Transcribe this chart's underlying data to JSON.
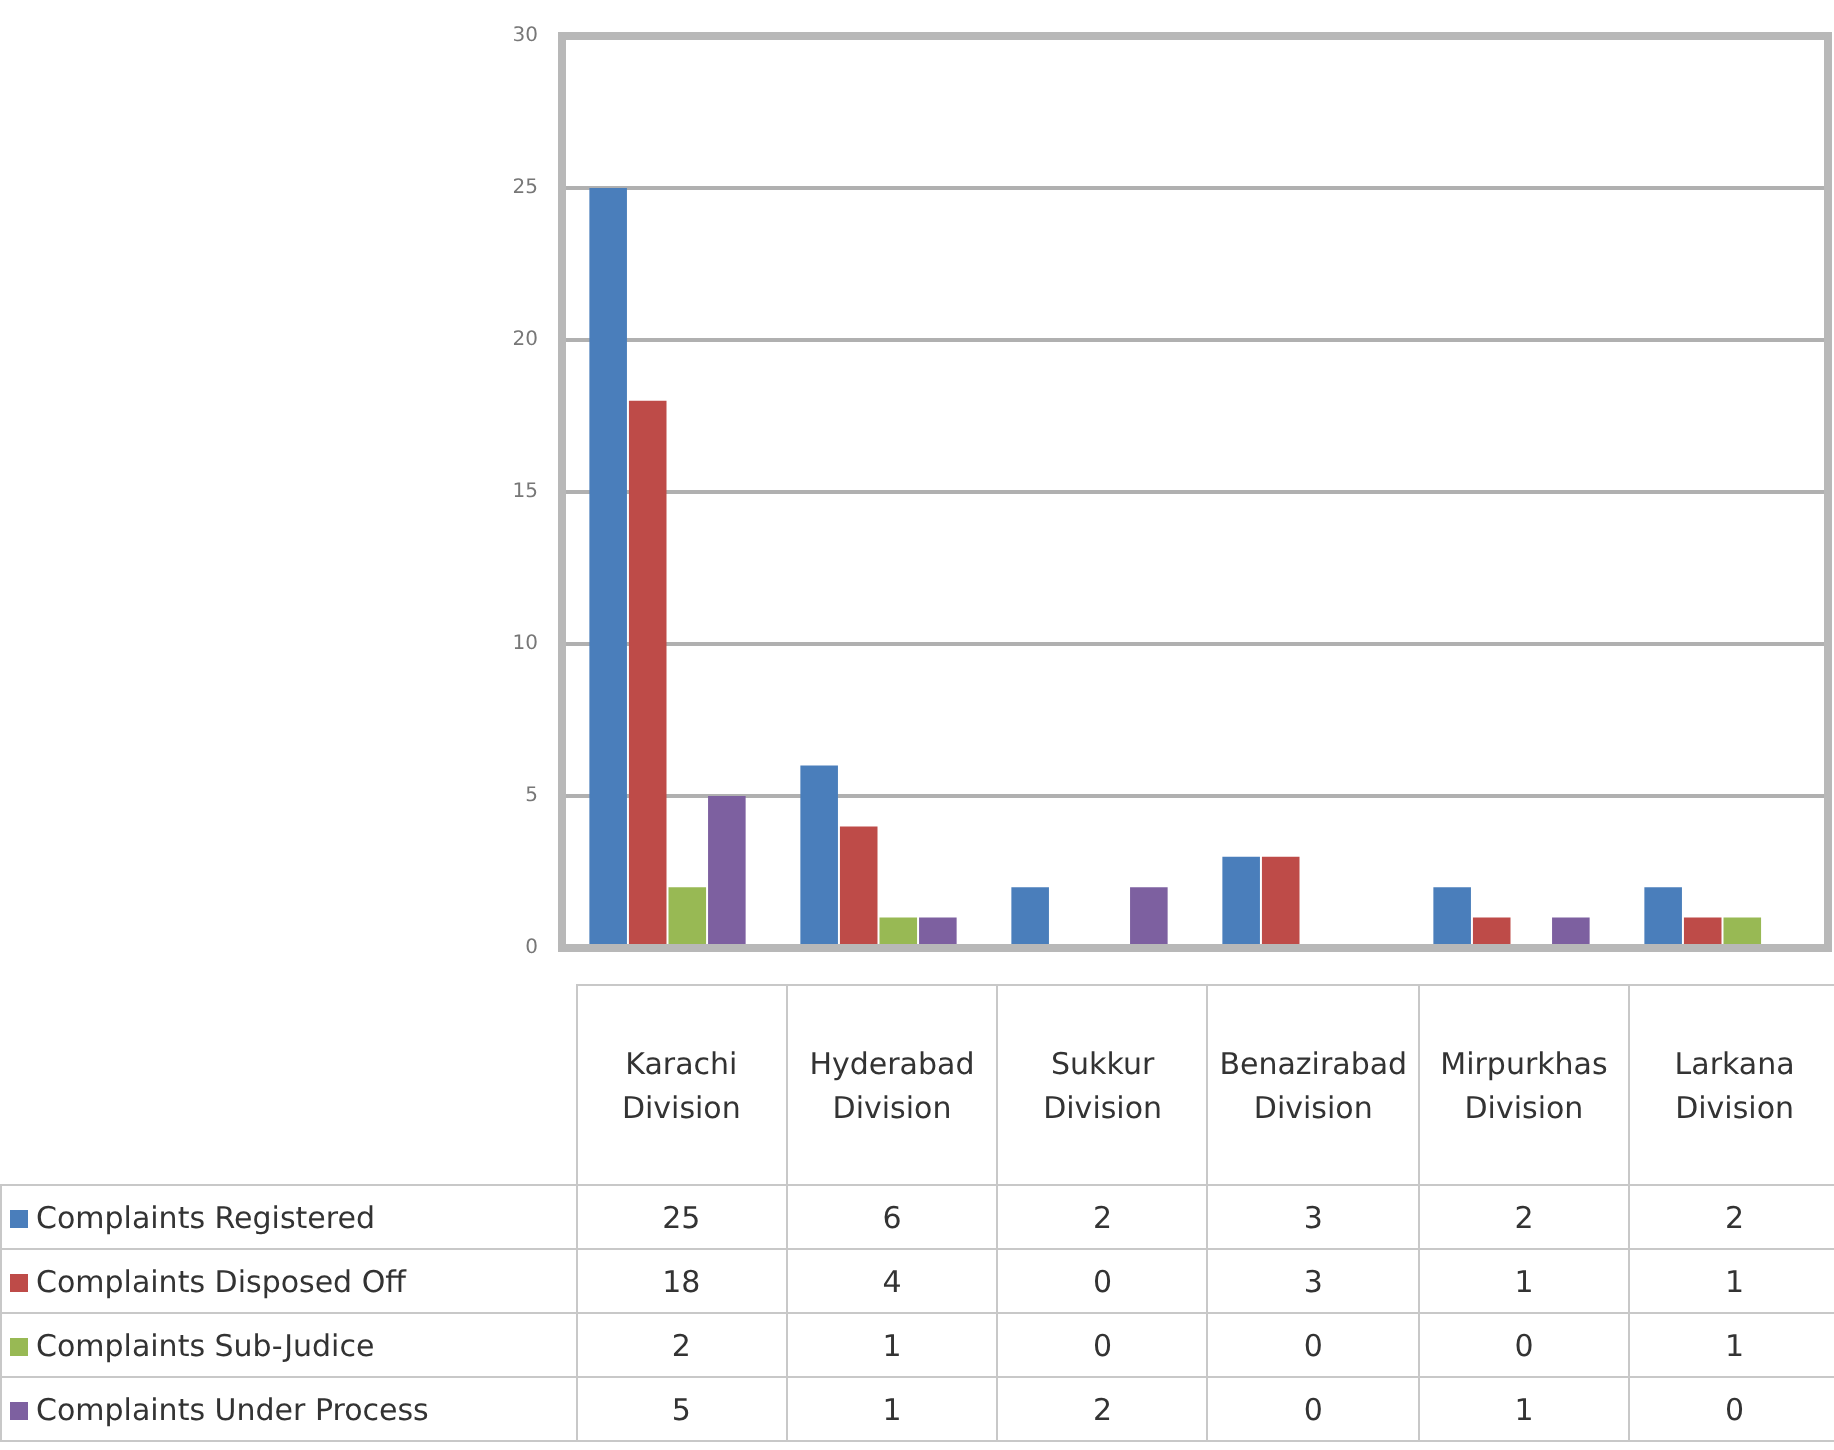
{
  "chart_data": {
    "type": "bar",
    "categories": [
      "Karachi Division",
      "Hyderabad Division",
      "Sukkur Division",
      "Benazirabad Division",
      "Mirpurkhas Division",
      "Larkana Division"
    ],
    "series": [
      {
        "name": "Complaints Registered",
        "color": "#4a7ebb",
        "values": [
          25,
          6,
          2,
          3,
          2,
          2
        ]
      },
      {
        "name": "Complaints Disposed Off",
        "color": "#be4b48",
        "values": [
          18,
          4,
          0,
          3,
          1,
          1
        ]
      },
      {
        "name": "Complaints Sub-Judice",
        "color": "#98b954",
        "values": [
          2,
          1,
          0,
          0,
          0,
          1
        ]
      },
      {
        "name": "Complaints Under Process",
        "color": "#7d60a0",
        "values": [
          5,
          1,
          2,
          0,
          1,
          0
        ]
      }
    ],
    "ylim": [
      0,
      30
    ],
    "yticks": [
      0,
      5,
      10,
      15,
      20,
      25,
      30
    ],
    "grid": "y",
    "legend": "bottom",
    "data_labels": true
  }
}
